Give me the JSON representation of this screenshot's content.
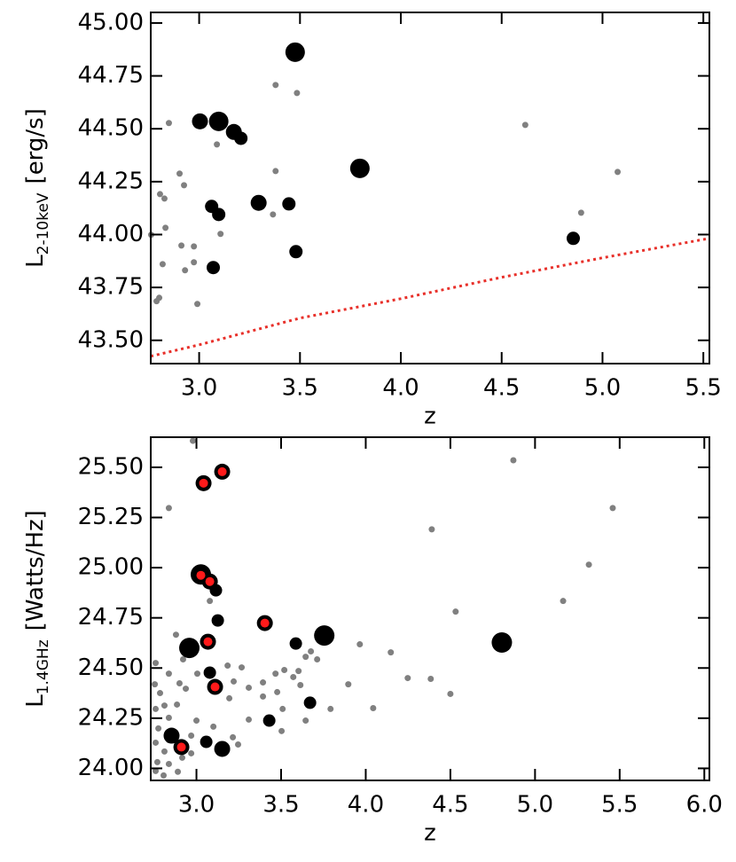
{
  "chart_data": [
    {
      "type": "scatter",
      "x_label": "z",
      "y_label": {
        "main": "L",
        "sub": "2-10keV",
        "unit": "[erg/s]"
      },
      "xlim": [
        2.76,
        5.53
      ],
      "ylim": [
        43.39,
        45.05
      ],
      "xticks": [
        {
          "value": 3,
          "label": "3.0"
        },
        {
          "value": 3.5,
          "label": "3.5"
        },
        {
          "value": 4,
          "label": "4.0"
        },
        {
          "value": 4.5,
          "label": "4.5"
        },
        {
          "value": 5,
          "label": "5.0"
        },
        {
          "value": 5.5,
          "label": "5.5"
        }
      ],
      "yticks": [
        {
          "value": 43.5,
          "label": "43.50"
        },
        {
          "value": 43.75,
          "label": "43.75"
        },
        {
          "value": 44,
          "label": "44.00"
        },
        {
          "value": 44.25,
          "label": "44.25"
        },
        {
          "value": 44.5,
          "label": "44.50"
        },
        {
          "value": 44.75,
          "label": "44.75"
        },
        {
          "value": 45,
          "label": "45.00"
        }
      ],
      "series": [
        {
          "color": "#808080",
          "x": [
            3.379,
            3.485,
            2.85,
            3.088,
            3.379,
            2.903,
            2.925,
            2.806,
            2.828,
            3.366,
            3.106,
            2.833,
            2.912,
            2.974,
            2.974,
            2.819,
            2.93,
            2.802,
            2.789,
            2.991,
            2.762,
            4.617,
            5.075,
            4.894
          ],
          "values": [
            44.707,
            44.669,
            44.527,
            44.426,
            44.3,
            44.288,
            44.233,
            44.191,
            44.17,
            44.095,
            44.003,
            44.032,
            43.948,
            43.944,
            43.869,
            43.86,
            43.831,
            43.701,
            43.685,
            43.672,
            43.999,
            44.518,
            44.296,
            44.103
          ]
        },
        {
          "color": "#000000",
          "x": [
            3.207,
            3.445,
            3.062,
            3.097,
            3.48,
            3.07,
            4.855
          ],
          "values": [
            44.455,
            44.145,
            44.133,
            44.095,
            43.919,
            43.844,
            43.982
          ]
        },
        {
          "color": "#000000",
          "x": [
            3.004,
            3.172,
            3.295
          ],
          "values": [
            44.535,
            44.485,
            44.15
          ]
        },
        {
          "color": "#000000",
          "x": [
            3.476,
            3.097,
            3.797
          ],
          "values": [
            44.862,
            44.535,
            44.313
          ]
        },
        {
          "type": "line",
          "style": "dotted",
          "color": "#e8302a",
          "x": [
            2.76,
            3.0,
            3.5,
            4.0,
            4.5,
            5.0,
            5.53
          ],
          "values": [
            43.425,
            43.479,
            43.605,
            43.697,
            43.798,
            43.89,
            43.982
          ]
        }
      ]
    },
    {
      "type": "scatter",
      "x_label": "z",
      "y_label": {
        "main": "L",
        "sub": "1.4GHz",
        "unit": "[Watts/Hz]"
      },
      "xlim": [
        2.73,
        6.03
      ],
      "ylim": [
        23.94,
        25.65
      ],
      "xticks": [
        {
          "value": 3,
          "label": "3.0"
        },
        {
          "value": 3.5,
          "label": "3.5"
        },
        {
          "value": 4,
          "label": "4.0"
        },
        {
          "value": 4.5,
          "label": "4.5"
        },
        {
          "value": 5,
          "label": "5.0"
        },
        {
          "value": 5.5,
          "label": "5.5"
        },
        {
          "value": 6,
          "label": "6.0"
        }
      ],
      "yticks": [
        {
          "value": 24,
          "label": "24.00"
        },
        {
          "value": 24.25,
          "label": "24.25"
        },
        {
          "value": 24.5,
          "label": "24.50"
        },
        {
          "value": 24.75,
          "label": "24.75"
        },
        {
          "value": 25,
          "label": "25.00"
        },
        {
          "value": 25.25,
          "label": "25.25"
        },
        {
          "value": 25.5,
          "label": "25.50"
        }
      ],
      "series": [
        {
          "color": "#808080",
          "x": [
            2.979,
            2.837,
            4.39,
            4.872,
            5.459,
            5.318,
            5.166,
            4.531,
            3.965,
            4.148,
            4.248,
            4.384,
            3.897,
            4.5,
            4.044,
            3.079,
            2.879,
            2.921,
            2.9,
            2.837,
            2.759,
            2.754,
            2.785,
            2.759,
            2.811,
            2.885,
            2.937,
            3.005,
            3.184,
            3.267,
            3.22,
            3.194,
            3.309,
            3.393,
            3.467,
            3.519,
            3.572,
            3.614,
            3.477,
            3.645,
            3.676,
            3.509,
            3.503,
            3.645,
            3.246,
            3.1,
            3.0,
            2.837,
            2.775,
            2.759,
            2.811,
            2.769,
            2.837,
            2.89,
            2.806,
            2.759,
            2.969,
            3.215,
            3.309,
            3.393,
            3.603,
            3.713,
            3.792,
            2.837,
            2.916,
            2.969
          ],
          "values": [
            25.632,
            25.297,
            25.191,
            25.535,
            25.297,
            25.015,
            24.834,
            24.781,
            24.618,
            24.578,
            24.45,
            24.446,
            24.419,
            24.371,
            24.3,
            24.834,
            24.666,
            24.543,
            24.424,
            24.472,
            24.525,
            24.419,
            24.375,
            24.296,
            24.313,
            24.318,
            24.397,
            24.472,
            24.512,
            24.503,
            24.433,
            24.349,
            24.402,
            24.358,
            24.472,
            24.49,
            24.455,
            24.415,
            24.38,
            24.556,
            24.583,
            24.296,
            24.186,
            24.238,
            24.119,
            24.208,
            24.238,
            24.252,
            24.199,
            24.128,
            24.084,
            24.031,
            24.022,
            23.983,
            23.965,
            23.987,
            24.163,
            24.155,
            24.243,
            24.428,
            24.485,
            24.543,
            24.296,
            24.141,
            24.053,
            24.075
          ]
        },
        {
          "color": "#000000",
          "x": [
            3.115,
            3.126,
            3.587,
            3.079,
            3.671,
            3.43,
            3.058
          ],
          "values": [
            24.887,
            24.737,
            24.622,
            24.477,
            24.327,
            24.238,
            24.132
          ]
        },
        {
          "color": "#000000",
          "x": [
            3.152,
            3.042,
            3.079,
            3.068,
            3.404,
            3.11,
            2.911,
            2.853,
            3.152
          ],
          "values": [
            25.478,
            25.421,
            24.931,
            24.631,
            24.724,
            24.406,
            24.106,
            24.163,
            24.097
          ]
        },
        {
          "color": "#000000",
          "x": [
            3.026,
            2.958,
            3.755,
            4.804
          ],
          "values": [
            24.966,
            24.6,
            24.662,
            24.627
          ]
        },
        {
          "color": "#ff1a1a",
          "x": [
            3.152,
            3.042,
            3.026,
            3.079,
            3.068,
            3.404,
            3.11,
            2.911
          ],
          "values": [
            25.478,
            25.421,
            24.962,
            24.931,
            24.631,
            24.724,
            24.406,
            24.106
          ]
        }
      ]
    }
  ]
}
